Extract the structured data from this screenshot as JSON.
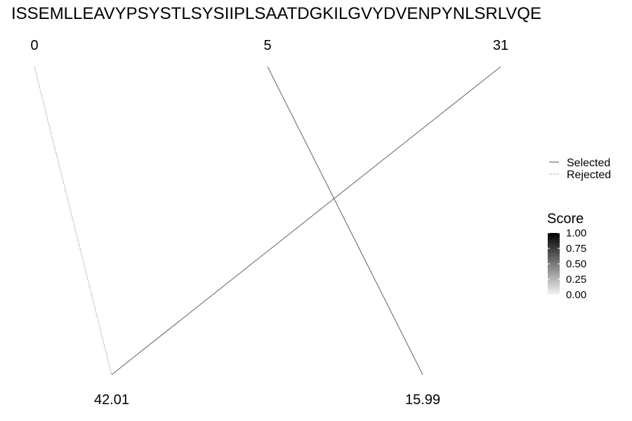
{
  "chart_data": {
    "type": "bipartite-line",
    "title": "ISSEMLLEAVYPSYSTLSYSIIPLSAATDGKILGVYDVENPYNLSRLVQE",
    "top_nodes": [
      "0",
      "5",
      "31"
    ],
    "bottom_nodes": [
      "42.01",
      "15.99"
    ],
    "links": [
      {
        "from": "0",
        "to": "42.01",
        "status": "Rejected",
        "score": 0.6
      },
      {
        "from": "5",
        "to": "15.99",
        "status": "Selected",
        "score": 0.6
      },
      {
        "from": "31",
        "to": "42.01",
        "status": "Selected",
        "score": 0.6
      }
    ],
    "legend": {
      "placement": "right",
      "linetype_entries": [
        {
          "label": "Selected",
          "style": "solid"
        },
        {
          "label": "Rejected",
          "style": "dotted"
        }
      ],
      "colorbar": {
        "title": "Score",
        "ticks": [
          "1.00",
          "0.75",
          "0.50",
          "0.25",
          "0.00"
        ],
        "range": [
          0,
          1
        ],
        "low_color": "#f4f4f4",
        "high_color": "#000000"
      }
    }
  }
}
